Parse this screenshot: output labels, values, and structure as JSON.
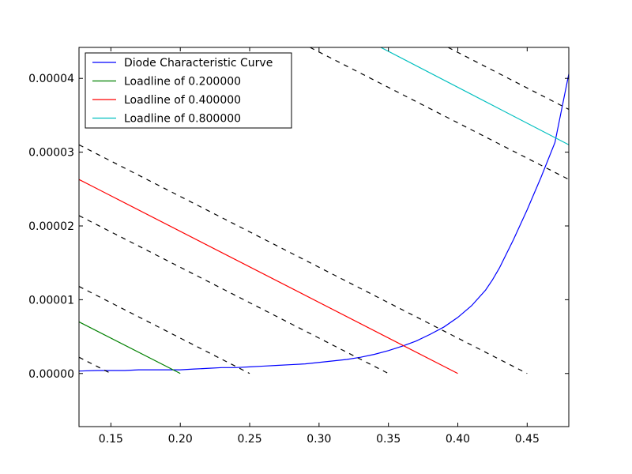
{
  "chart_data": {
    "type": "line",
    "title": "",
    "xlabel": "",
    "ylabel": "",
    "xlim": [
      0.127,
      0.48
    ],
    "ylim": [
      -7.2e-06,
      4.42e-05
    ],
    "grid": false,
    "legend_position": "top-left",
    "xticks": [
      0.15,
      0.2,
      0.25,
      0.3,
      0.35,
      0.4,
      0.45
    ],
    "xtick_labels": [
      "0.15",
      "0.20",
      "0.25",
      "0.30",
      "0.35",
      "0.40",
      "0.45"
    ],
    "yticks": [
      0,
      1e-05,
      2e-05,
      3e-05,
      4e-05
    ],
    "ytick_labels": [
      "0.00000",
      "0.00001",
      "0.00002",
      "0.00003",
      "0.00004"
    ],
    "series": [
      {
        "name": "Diode Characteristic Curve",
        "color": "#0000ff",
        "dashed": false,
        "x": [
          0.127,
          0.14,
          0.15,
          0.16,
          0.17,
          0.18,
          0.19,
          0.2,
          0.21,
          0.22,
          0.23,
          0.24,
          0.25,
          0.26,
          0.27,
          0.28,
          0.29,
          0.3,
          0.31,
          0.32,
          0.33,
          0.34,
          0.35,
          0.36,
          0.37,
          0.38,
          0.39,
          0.4,
          0.41,
          0.42,
          0.425,
          0.43,
          0.44,
          0.45,
          0.46,
          0.47,
          0.48
        ],
        "y": [
          3.3e-07,
          4e-07,
          4e-07,
          4e-07,
          5e-07,
          5e-07,
          5e-07,
          5e-07,
          6e-07,
          7e-07,
          8e-07,
          8e-07,
          9e-07,
          1e-06,
          1.1e-06,
          1.2e-06,
          1.3e-06,
          1.5e-06,
          1.7e-06,
          1.9e-06,
          2.2e-06,
          2.6e-06,
          3.1e-06,
          3.7e-06,
          4.4e-06,
          5.3e-06,
          6.3e-06,
          7.6e-06,
          9.2e-06,
          1.13e-05,
          1.27e-05,
          1.43e-05,
          1.81e-05,
          2.22e-05,
          2.66e-05,
          3.13e-05,
          4.06e-05
        ]
      },
      {
        "name": "Loadline of 0.200000",
        "color": "#008000",
        "dashed": false,
        "x": [
          0.127,
          0.2
        ],
        "y": [
          7e-06,
          0
        ]
      },
      {
        "name": "Loadline of 0.400000",
        "color": "#ff0000",
        "dashed": false,
        "x": [
          0.127,
          0.4
        ],
        "y": [
          2.63e-05,
          0
        ]
      },
      {
        "name": "Loadline of 0.800000",
        "color": "#00bfbf",
        "dashed": false,
        "x": [
          0.3445,
          0.48
        ],
        "y": [
          4.42e-05,
          3.1e-05
        ]
      },
      {
        "name": "",
        "color": "#000000",
        "dashed": true,
        "x": [
          0.127,
          0.15
        ],
        "y": [
          2.2e-06,
          0
        ]
      },
      {
        "name": "",
        "color": "#000000",
        "dashed": true,
        "x": [
          0.127,
          0.25
        ],
        "y": [
          1.18e-05,
          0
        ]
      },
      {
        "name": "",
        "color": "#000000",
        "dashed": true,
        "x": [
          0.127,
          0.35
        ],
        "y": [
          2.14e-05,
          0
        ]
      },
      {
        "name": "",
        "color": "#000000",
        "dashed": true,
        "x": [
          0.127,
          0.45
        ],
        "y": [
          3.1e-05,
          0
        ]
      },
      {
        "name": "",
        "color": "#000000",
        "dashed": true,
        "x": [
          0.2935,
          0.48
        ],
        "y": [
          4.42e-05,
          2.63e-05
        ]
      },
      {
        "name": "",
        "color": "#000000",
        "dashed": true,
        "x": [
          0.393,
          0.48
        ],
        "y": [
          4.42e-05,
          3.58e-05
        ]
      }
    ]
  }
}
